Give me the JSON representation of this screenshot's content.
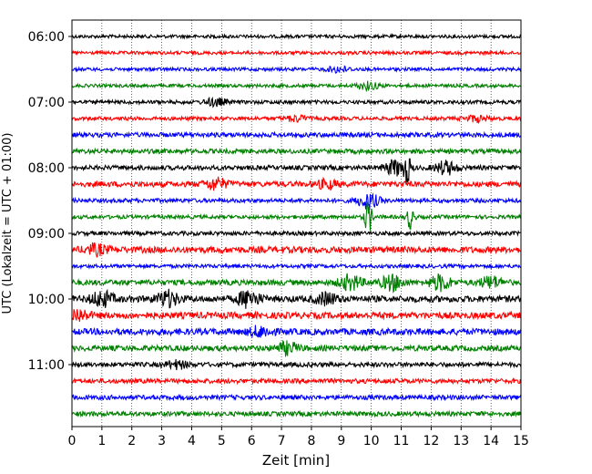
{
  "chart_data": {
    "type": "line",
    "title": "",
    "xlabel": "Zeit  [min]",
    "ylabel": "UTC (Lokalzeit = UTC + 01:00)",
    "xlim": [
      0,
      15
    ],
    "x_ticks": [
      "0",
      "1",
      "2",
      "3",
      "4",
      "5",
      "6",
      "7",
      "8",
      "9",
      "10",
      "11",
      "12",
      "13",
      "14",
      "15"
    ],
    "y_ticks": [
      "06:00",
      "07:00",
      "08:00",
      "09:00",
      "10:00",
      "11:00"
    ],
    "grid": "vertical dotted",
    "trace_colors": [
      "#000000",
      "#ff0000",
      "#0000ff",
      "#008000"
    ],
    "series": [
      {
        "start": "06:00",
        "amplitude": 0.18,
        "events": []
      },
      {
        "start": "06:15",
        "amplitude": 0.18,
        "events": []
      },
      {
        "start": "06:30",
        "amplitude": 0.18,
        "events": [
          {
            "t": 8.9,
            "amp": 0.3
          }
        ]
      },
      {
        "start": "06:45",
        "amplitude": 0.18,
        "events": [
          {
            "t": 9.9,
            "amp": 0.4
          }
        ]
      },
      {
        "start": "07:00",
        "amplitude": 0.2,
        "events": [
          {
            "t": 4.8,
            "amp": 0.4
          }
        ]
      },
      {
        "start": "07:15",
        "amplitude": 0.2,
        "events": [
          {
            "t": 7.5,
            "amp": 0.3
          },
          {
            "t": 13.5,
            "amp": 0.3
          }
        ]
      },
      {
        "start": "07:30",
        "amplitude": 0.25,
        "events": []
      },
      {
        "start": "07:45",
        "amplitude": 0.25,
        "events": []
      },
      {
        "start": "08:00",
        "amplitude": 0.25,
        "events": [
          {
            "t": 10.8,
            "amp": 0.8
          },
          {
            "t": 11.2,
            "amp": 1.4
          },
          {
            "t": 12.5,
            "amp": 0.7
          }
        ]
      },
      {
        "start": "08:15",
        "amplitude": 0.3,
        "events": [
          {
            "t": 4.8,
            "amp": 0.6
          },
          {
            "t": 8.5,
            "amp": 0.4
          }
        ]
      },
      {
        "start": "08:30",
        "amplitude": 0.22,
        "events": [
          {
            "t": 9.9,
            "amp": 0.8
          }
        ]
      },
      {
        "start": "08:45",
        "amplitude": 0.2,
        "events": [
          {
            "t": 9.9,
            "amp": 1.8
          },
          {
            "t": 11.3,
            "amp": 1.2
          }
        ]
      },
      {
        "start": "09:00",
        "amplitude": 0.22,
        "events": []
      },
      {
        "start": "09:15",
        "amplitude": 0.35,
        "events": [
          {
            "t": 0.8,
            "amp": 0.5
          }
        ]
      },
      {
        "start": "09:30",
        "amplitude": 0.2,
        "events": []
      },
      {
        "start": "09:45",
        "amplitude": 0.3,
        "events": [
          {
            "t": 9.3,
            "amp": 0.8
          },
          {
            "t": 10.7,
            "amp": 0.8
          },
          {
            "t": 12.3,
            "amp": 0.8
          },
          {
            "t": 14.0,
            "amp": 0.6
          }
        ]
      },
      {
        "start": "10:00",
        "amplitude": 0.35,
        "events": [
          {
            "t": 1.0,
            "amp": 0.8
          },
          {
            "t": 3.2,
            "amp": 0.8
          },
          {
            "t": 5.9,
            "amp": 0.9
          },
          {
            "t": 8.5,
            "amp": 0.6
          }
        ]
      },
      {
        "start": "10:15",
        "amplitude": 0.35,
        "events": [
          {
            "t": 0.2,
            "amp": 0.6
          }
        ]
      },
      {
        "start": "10:30",
        "amplitude": 0.35,
        "events": [
          {
            "t": 6.3,
            "amp": 0.5
          }
        ]
      },
      {
        "start": "10:45",
        "amplitude": 0.3,
        "events": [
          {
            "t": 7.2,
            "amp": 0.6
          }
        ]
      },
      {
        "start": "11:00",
        "amplitude": 0.25,
        "events": [
          {
            "t": 3.5,
            "amp": 0.4
          }
        ]
      },
      {
        "start": "11:15",
        "amplitude": 0.25,
        "events": []
      },
      {
        "start": "11:30",
        "amplitude": 0.25,
        "events": []
      },
      {
        "start": "11:45",
        "amplitude": 0.25,
        "events": []
      }
    ]
  }
}
